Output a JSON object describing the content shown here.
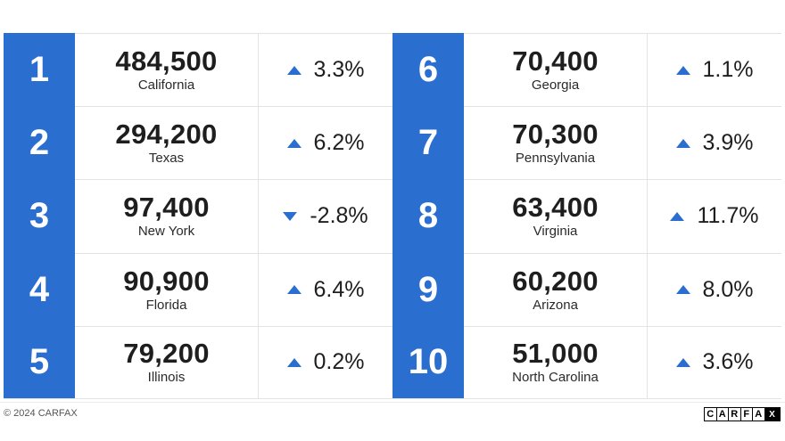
{
  "left_rows": [
    {
      "rank": "1",
      "count": "484,500",
      "state": "California",
      "direction": "up",
      "change": "3.3%"
    },
    {
      "rank": "2",
      "count": "294,200",
      "state": "Texas",
      "direction": "up",
      "change": "6.2%"
    },
    {
      "rank": "3",
      "count": "97,400",
      "state": "New York",
      "direction": "down",
      "change": "-2.8%"
    },
    {
      "rank": "4",
      "count": "90,900",
      "state": "Florida",
      "direction": "up",
      "change": "6.4%"
    },
    {
      "rank": "5",
      "count": "79,200",
      "state": "Illinois",
      "direction": "up",
      "change": "0.2%"
    }
  ],
  "right_rows": [
    {
      "rank": "6",
      "count": "70,400",
      "state": "Georgia",
      "direction": "up",
      "change": "1.1%"
    },
    {
      "rank": "7",
      "count": "70,300",
      "state": "Pennsylvania",
      "direction": "up",
      "change": "3.9%"
    },
    {
      "rank": "8",
      "count": "63,400",
      "state": "Virginia",
      "direction": "up",
      "change": "11.7%"
    },
    {
      "rank": "9",
      "count": "60,200",
      "state": "Arizona",
      "direction": "up",
      "change": "8.0%"
    },
    {
      "rank": "10",
      "count": "51,000",
      "state": "North Carolina",
      "direction": "up",
      "change": "3.6%"
    }
  ],
  "footer": {
    "copyright": "© 2024 CARFAX",
    "logo_letters": [
      "C",
      "A",
      "R",
      "F",
      "A",
      "X"
    ]
  },
  "colors": {
    "accent": "#2a6ed0"
  }
}
